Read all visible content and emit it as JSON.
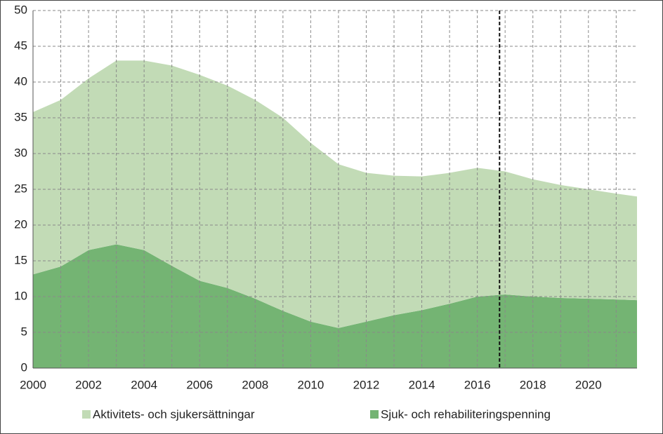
{
  "chart_data": {
    "type": "stacked_area",
    "x": [
      2000,
      2001,
      2002,
      2003,
      2004,
      2005,
      2006,
      2007,
      2008,
      2009,
      2010,
      2011,
      2012,
      2013,
      2014,
      2015,
      2016,
      2017,
      2018,
      2019,
      2020,
      2021,
      2021.75
    ],
    "series": [
      {
        "name": "Aktivitets- och sjukersättningar",
        "color": "#c2dbb6",
        "values": [
          22.7,
          23.3,
          24.0,
          25.7,
          26.5,
          28.0,
          28.8,
          28.3,
          27.8,
          27.0,
          25.0,
          22.9,
          20.8,
          19.5,
          18.7,
          18.3,
          18.0,
          17.2,
          16.4,
          15.8,
          15.3,
          14.8,
          14.5
        ]
      },
      {
        "name": "Sjuk- och rehabiliteringspenning",
        "color": "#74b473",
        "values": [
          13.1,
          14.2,
          16.5,
          17.3,
          16.5,
          14.3,
          12.2,
          11.2,
          9.7,
          8.0,
          6.5,
          5.6,
          6.5,
          7.4,
          8.1,
          9.0,
          10.0,
          10.3,
          10.0,
          9.8,
          9.7,
          9.6,
          9.5
        ]
      }
    ],
    "xlim": [
      2000,
      2021.75
    ],
    "xticks": [
      2000,
      2002,
      2004,
      2006,
      2008,
      2010,
      2012,
      2014,
      2016,
      2018,
      2020
    ],
    "xminorticks": [
      2001,
      2003,
      2005,
      2007,
      2009,
      2011,
      2013,
      2015,
      2017,
      2019,
      2021
    ],
    "ylim": [
      0,
      50
    ],
    "yticks": [
      0,
      5,
      10,
      15,
      20,
      25,
      30,
      35,
      40,
      45,
      50
    ],
    "grid": true,
    "forecast_line": 2016.8,
    "legend": "bottom"
  }
}
